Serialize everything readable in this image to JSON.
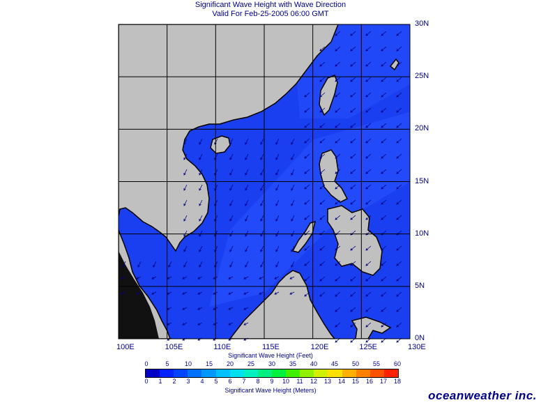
{
  "title": "Significant Wave Height with Wave Direction",
  "valid": "Valid For Feb-25-2005 06:00 GMT",
  "lat_labels": [
    "30N",
    "25N",
    "20N",
    "15N",
    "10N",
    "5N",
    "0N"
  ],
  "lon_labels": [
    "100E",
    "105E",
    "110E",
    "115E",
    "120E",
    "125E",
    "130E"
  ],
  "feet_title": "Significant Wave Height (Feet)",
  "feet_ticks": [
    "0",
    "5",
    "10",
    "15",
    "20",
    "25",
    "30",
    "35",
    "40",
    "45",
    "50",
    "55",
    "60"
  ],
  "meters_title": "Significant Wave Height (Meters)",
  "meters_ticks": [
    "0",
    "1",
    "2",
    "3",
    "4",
    "5",
    "6",
    "7",
    "8",
    "9",
    "10",
    "11",
    "12",
    "13",
    "14",
    "15",
    "16",
    "17",
    "18"
  ],
  "colorbar_colors": [
    "#0000c8",
    "#0022ff",
    "#0044ff",
    "#0070ff",
    "#0098ff",
    "#00c0ff",
    "#00e0f0",
    "#00f0c0",
    "#00f080",
    "#00f040",
    "#40f000",
    "#90f000",
    "#d0f000",
    "#ffe000",
    "#ffb000",
    "#ff8000",
    "#ff5000",
    "#ff2000"
  ],
  "colors": {
    "ocean": "#1a3ff0",
    "ocean_dark": "#1437e0",
    "ocean_light": "#2a54ff",
    "land": "#c0c0c0",
    "text": "#00008b"
  },
  "brand": "oceanweather inc."
}
